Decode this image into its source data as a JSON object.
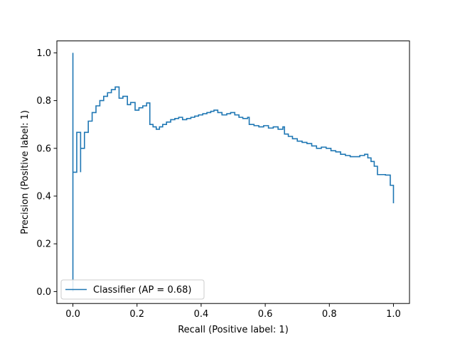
{
  "chart_data": {
    "type": "line",
    "title": "",
    "xlabel": "Recall (Positive label: 1)",
    "ylabel": "Precision (Positive label: 1)",
    "xlim": [
      -0.05,
      1.05
    ],
    "ylim": [
      -0.05,
      1.05
    ],
    "grid": false,
    "legend_position": "lower-left",
    "series_color": "#1f77b4",
    "x_ticks": [
      "0.0",
      "0.2",
      "0.4",
      "0.6",
      "0.8",
      "1.0"
    ],
    "y_ticks": [
      "0.0",
      "0.2",
      "0.4",
      "0.6",
      "0.8",
      "1.0"
    ],
    "series": [
      {
        "name": "Classifier (AP = 0.68)",
        "step": "post",
        "points": [
          [
            0.0,
            1.0
          ],
          [
            0.0,
            0.0
          ],
          [
            0.0,
            0.5
          ],
          [
            0.012,
            0.667
          ],
          [
            0.024,
            0.5
          ],
          [
            0.024,
            0.6
          ],
          [
            0.036,
            0.667
          ],
          [
            0.048,
            0.714
          ],
          [
            0.06,
            0.75
          ],
          [
            0.072,
            0.778
          ],
          [
            0.084,
            0.8
          ],
          [
            0.096,
            0.818
          ],
          [
            0.108,
            0.833
          ],
          [
            0.12,
            0.846
          ],
          [
            0.132,
            0.857
          ],
          [
            0.144,
            0.81
          ],
          [
            0.156,
            0.818
          ],
          [
            0.17,
            0.783
          ],
          [
            0.18,
            0.792
          ],
          [
            0.194,
            0.76
          ],
          [
            0.206,
            0.77
          ],
          [
            0.218,
            0.778
          ],
          [
            0.23,
            0.79
          ],
          [
            0.24,
            0.7
          ],
          [
            0.25,
            0.69
          ],
          [
            0.26,
            0.68
          ],
          [
            0.27,
            0.69
          ],
          [
            0.28,
            0.7
          ],
          [
            0.292,
            0.71
          ],
          [
            0.305,
            0.72
          ],
          [
            0.318,
            0.725
          ],
          [
            0.33,
            0.73
          ],
          [
            0.342,
            0.72
          ],
          [
            0.355,
            0.725
          ],
          [
            0.368,
            0.73
          ],
          [
            0.38,
            0.735
          ],
          [
            0.392,
            0.74
          ],
          [
            0.405,
            0.745
          ],
          [
            0.418,
            0.75
          ],
          [
            0.43,
            0.755
          ],
          [
            0.44,
            0.76
          ],
          [
            0.452,
            0.75
          ],
          [
            0.465,
            0.74
          ],
          [
            0.48,
            0.745
          ],
          [
            0.492,
            0.75
          ],
          [
            0.505,
            0.74
          ],
          [
            0.518,
            0.73
          ],
          [
            0.53,
            0.725
          ],
          [
            0.545,
            0.73
          ],
          [
            0.55,
            0.7
          ],
          [
            0.565,
            0.695
          ],
          [
            0.58,
            0.69
          ],
          [
            0.595,
            0.695
          ],
          [
            0.61,
            0.685
          ],
          [
            0.625,
            0.69
          ],
          [
            0.64,
            0.68
          ],
          [
            0.655,
            0.69
          ],
          [
            0.66,
            0.66
          ],
          [
            0.672,
            0.65
          ],
          [
            0.685,
            0.64
          ],
          [
            0.7,
            0.63
          ],
          [
            0.715,
            0.625
          ],
          [
            0.73,
            0.62
          ],
          [
            0.745,
            0.61
          ],
          [
            0.76,
            0.6
          ],
          [
            0.775,
            0.605
          ],
          [
            0.79,
            0.6
          ],
          [
            0.805,
            0.59
          ],
          [
            0.82,
            0.585
          ],
          [
            0.835,
            0.575
          ],
          [
            0.85,
            0.57
          ],
          [
            0.865,
            0.565
          ],
          [
            0.88,
            0.565
          ],
          [
            0.895,
            0.57
          ],
          [
            0.91,
            0.575
          ],
          [
            0.92,
            0.56
          ],
          [
            0.93,
            0.545
          ],
          [
            0.94,
            0.525
          ],
          [
            0.95,
            0.49
          ],
          [
            0.975,
            0.488
          ],
          [
            0.99,
            0.445
          ],
          [
            1.0,
            0.37
          ]
        ]
      }
    ]
  }
}
